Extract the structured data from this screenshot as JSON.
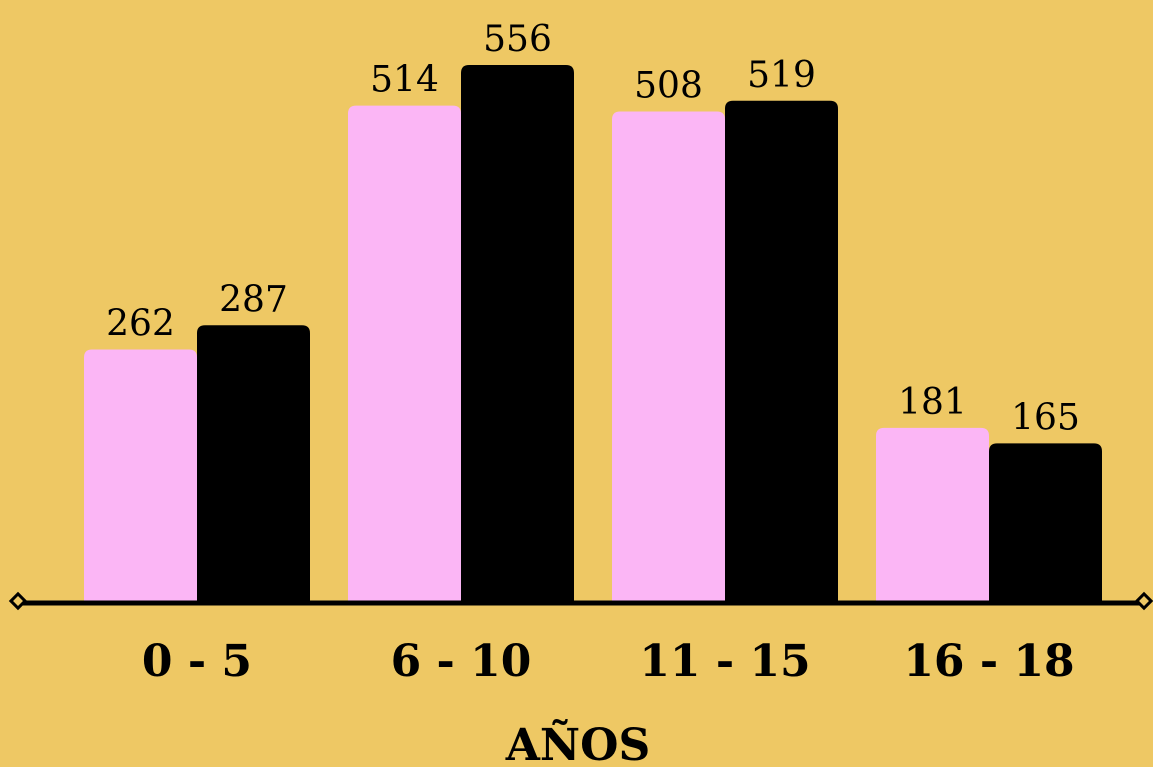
{
  "chart_data": {
    "type": "bar",
    "categories": [
      "0 - 5",
      "6 - 10",
      "11 - 15",
      "16 - 18"
    ],
    "series": [
      {
        "values": [
          262,
          514,
          508,
          181
        ],
        "color": "#FBB6F5"
      },
      {
        "values": [
          287,
          556,
          519,
          165
        ],
        "color": "#000000"
      }
    ],
    "xlabel": "AÑOS",
    "ylabel": "",
    "ylim": [
      0,
      580
    ],
    "grid": false,
    "legend": "none",
    "background": "#EEC864",
    "axis_color": "#000000"
  }
}
